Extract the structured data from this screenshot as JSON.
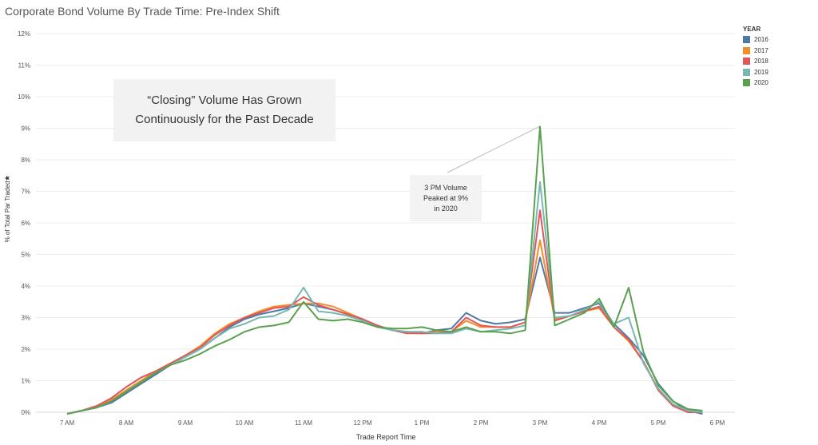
{
  "title": "Corporate Bond Volume By Trade Time: Pre-Index Shift",
  "annotation_main": [
    "“Closing” Volume Has Grown",
    "Continuously for the Past Decade"
  ],
  "annotation_peak": [
    "3 PM Volume",
    "Peaked at 9%",
    "in 2020"
  ],
  "chart_data": {
    "type": "line",
    "title": "Corporate Bond Volume By Trade Time: Pre-Index Shift",
    "xlabel": "Trade Report Time",
    "ylabel": "% of Total Par Traded",
    "ylim": [
      0,
      12
    ],
    "xlim": [
      7,
      18
    ],
    "grid": true,
    "legend_title": "YEAR",
    "legend_position": "top-right",
    "x_tick_labels": [
      "7 AM",
      "8 AM",
      "9 AM",
      "10 AM",
      "11 AM",
      "12 PM",
      "1 PM",
      "2 PM",
      "3 PM",
      "4 PM",
      "5 PM",
      "6 PM"
    ],
    "y_tick_labels": [
      "0%",
      "1%",
      "2%",
      "3%",
      "4%",
      "5%",
      "6%",
      "7%",
      "8%",
      "9%",
      "10%",
      "11%",
      "12%"
    ],
    "x": [
      7.0,
      7.25,
      7.5,
      7.75,
      8.0,
      8.25,
      8.5,
      8.75,
      9.0,
      9.25,
      9.5,
      9.75,
      10.0,
      10.25,
      10.5,
      10.75,
      11.0,
      11.25,
      11.5,
      11.75,
      12.0,
      12.25,
      12.5,
      12.75,
      13.0,
      13.25,
      13.5,
      13.75,
      14.0,
      14.25,
      14.5,
      14.75,
      15.0,
      15.25,
      15.5,
      15.75,
      16.0,
      16.25,
      16.5,
      16.75,
      17.0,
      17.25,
      17.5,
      17.75
    ],
    "series": [
      {
        "name": "2016",
        "color": "#4e79a7",
        "values": [
          -0.05,
          0.05,
          0.15,
          0.3,
          0.6,
          0.9,
          1.2,
          1.5,
          1.75,
          2.0,
          2.35,
          2.7,
          2.95,
          3.1,
          3.2,
          3.3,
          3.45,
          3.35,
          3.25,
          3.1,
          2.95,
          2.75,
          2.6,
          2.55,
          2.5,
          2.6,
          2.65,
          3.15,
          2.9,
          2.8,
          2.85,
          2.95,
          4.9,
          3.15,
          3.15,
          3.3,
          3.45,
          2.8,
          2.35,
          1.8,
          0.9,
          0.35,
          0.05,
          -0.05
        ]
      },
      {
        "name": "2017",
        "color": "#f28e2b",
        "values": [
          -0.05,
          0.05,
          0.2,
          0.4,
          0.7,
          1.0,
          1.3,
          1.55,
          1.8,
          2.1,
          2.5,
          2.8,
          3.0,
          3.2,
          3.35,
          3.4,
          3.45,
          3.45,
          3.35,
          3.15,
          2.95,
          2.75,
          2.6,
          2.55,
          2.5,
          2.55,
          2.55,
          2.9,
          2.7,
          2.7,
          2.7,
          2.85,
          5.45,
          2.95,
          3.05,
          3.2,
          3.3,
          2.7,
          2.25,
          1.6,
          0.75,
          0.25,
          0.05,
          0.0
        ]
      },
      {
        "name": "2018",
        "color": "#e15759",
        "values": [
          -0.05,
          0.05,
          0.2,
          0.45,
          0.8,
          1.1,
          1.3,
          1.55,
          1.8,
          2.05,
          2.45,
          2.75,
          3.0,
          3.15,
          3.3,
          3.35,
          3.65,
          3.4,
          3.25,
          3.1,
          2.95,
          2.75,
          2.6,
          2.5,
          2.5,
          2.5,
          2.55,
          3.0,
          2.75,
          2.7,
          2.7,
          2.85,
          6.4,
          2.9,
          3.05,
          3.2,
          3.35,
          2.7,
          2.3,
          1.6,
          0.7,
          0.2,
          0.0,
          0.0
        ]
      },
      {
        "name": "2019",
        "color": "#76b7b2",
        "values": [
          -0.05,
          0.05,
          0.15,
          0.35,
          0.65,
          0.95,
          1.25,
          1.5,
          1.75,
          2.0,
          2.35,
          2.65,
          2.8,
          3.0,
          3.05,
          3.25,
          3.95,
          3.2,
          3.15,
          3.05,
          2.9,
          2.7,
          2.6,
          2.55,
          2.55,
          2.5,
          2.5,
          2.65,
          2.55,
          2.6,
          2.65,
          2.75,
          7.3,
          3.0,
          3.05,
          3.25,
          3.5,
          2.8,
          3.0,
          1.55,
          0.75,
          0.25,
          0.05,
          0.0
        ]
      },
      {
        "name": "2020",
        "color": "#59a14f",
        "values": [
          -0.05,
          0.05,
          0.15,
          0.35,
          0.65,
          0.95,
          1.25,
          1.5,
          1.65,
          1.85,
          2.1,
          2.3,
          2.55,
          2.7,
          2.75,
          2.85,
          3.5,
          2.95,
          2.9,
          2.95,
          2.85,
          2.7,
          2.65,
          2.65,
          2.7,
          2.6,
          2.55,
          2.7,
          2.55,
          2.55,
          2.5,
          2.6,
          9.05,
          2.75,
          2.95,
          3.15,
          3.6,
          2.7,
          3.95,
          1.9,
          0.85,
          0.35,
          0.1,
          0.05
        ]
      }
    ]
  }
}
